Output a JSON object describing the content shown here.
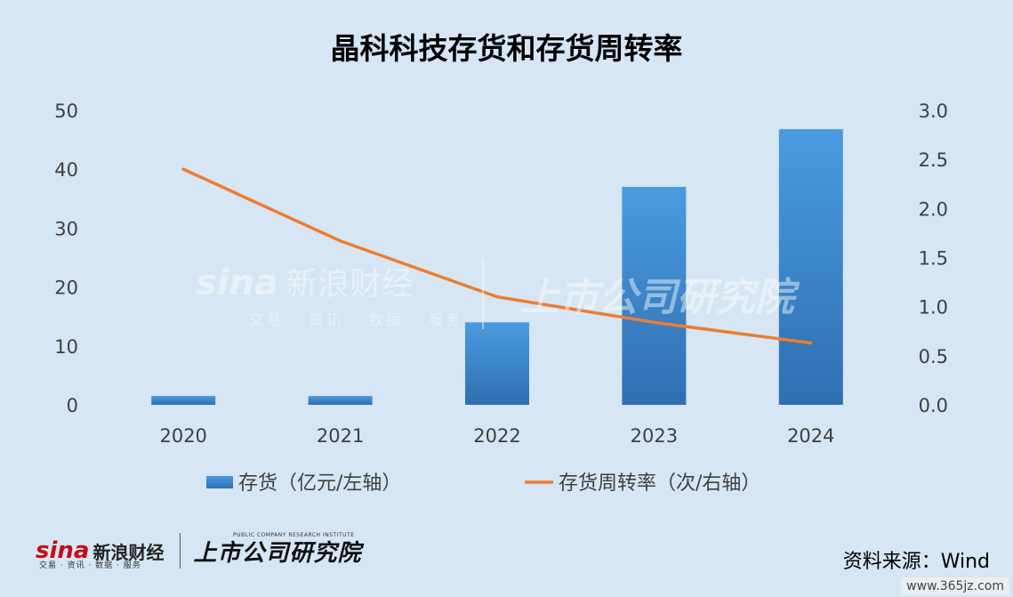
{
  "chart_data": {
    "type": "bar+line",
    "title": "晶科科技存货和存货周转率",
    "categories": [
      "2020",
      "2021",
      "2022",
      "2023",
      "2024"
    ],
    "series": [
      {
        "name": "存货（亿元/左轴）",
        "type": "bar",
        "axis": "left",
        "values": [
          1.5,
          1.5,
          14.0,
          37.0,
          46.8
        ],
        "color": "#3f8fd6"
      },
      {
        "name": "存货周转率（次/右轴）",
        "type": "line",
        "axis": "right",
        "values": [
          2.4,
          1.67,
          1.1,
          0.84,
          0.63
        ],
        "color": "#ed7d31"
      }
    ],
    "y_left": {
      "ylim": [
        0,
        50
      ],
      "ticks": [
        "0",
        "10",
        "20",
        "30",
        "40",
        "50"
      ]
    },
    "y_right": {
      "ylim": [
        0,
        3.0
      ],
      "ticks": [
        "0.0",
        "0.5",
        "1.0",
        "1.5",
        "2.0",
        "2.5",
        "3.0"
      ]
    },
    "grid": false,
    "legend": "bottom"
  },
  "source": "资料来源：Wind",
  "footer": {
    "sina_logo": "sina",
    "sina_cn": "新浪财经",
    "sina_sub": "交易 · 资讯 · 数据 · 服务",
    "ir_logo": "上市公司研究院",
    "ir_en": "PUBLIC COMPANY RESEARCH INSTITUTE"
  },
  "site_mark": "www.365jz.com"
}
